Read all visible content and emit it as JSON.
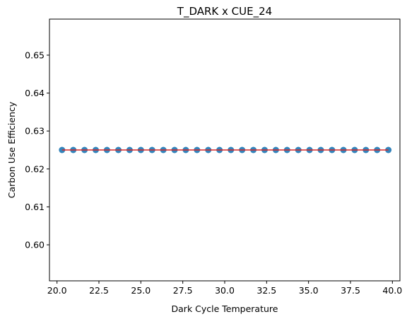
{
  "chart_data": {
    "type": "scatter",
    "title": "T_DARK x CUE_24",
    "xlabel": "Dark Cycle Temperature",
    "ylabel": "Carbon Use Efficiency",
    "xlim": [
      19.55,
      40.45
    ],
    "ylim": [
      0.5905,
      0.6595
    ],
    "xticks": [
      20.0,
      22.5,
      25.0,
      27.5,
      30.0,
      32.5,
      35.0,
      37.5,
      40.0
    ],
    "xtick_labels": [
      "20.0",
      "22.5",
      "25.0",
      "27.5",
      "30.0",
      "32.5",
      "35.0",
      "37.5",
      "40.0"
    ],
    "yticks": [
      0.6,
      0.61,
      0.62,
      0.63,
      0.64,
      0.65
    ],
    "ytick_labels": [
      "0.60",
      "0.61",
      "0.62",
      "0.63",
      "0.64",
      "0.65"
    ],
    "grid": false,
    "series": [
      {
        "kind": "scatter",
        "color": "#1f77b4",
        "x": [
          20.3,
          20.97,
          21.64,
          22.31,
          22.98,
          23.66,
          24.33,
          25.0,
          25.67,
          26.34,
          27.01,
          27.68,
          28.35,
          29.02,
          29.69,
          30.37,
          31.04,
          31.71,
          32.38,
          33.05,
          33.72,
          34.39,
          35.06,
          35.73,
          36.4,
          37.08,
          37.75,
          38.42,
          39.09,
          39.76
        ],
        "y": [
          0.625,
          0.625,
          0.625,
          0.625,
          0.625,
          0.625,
          0.625,
          0.625,
          0.625,
          0.625,
          0.625,
          0.625,
          0.625,
          0.625,
          0.625,
          0.625,
          0.625,
          0.625,
          0.625,
          0.625,
          0.625,
          0.625,
          0.625,
          0.625,
          0.625,
          0.625,
          0.625,
          0.625,
          0.625,
          0.625
        ]
      },
      {
        "kind": "line",
        "color": "#d62728",
        "x": [
          20.3,
          39.76
        ],
        "y": [
          0.625,
          0.625
        ]
      }
    ]
  }
}
